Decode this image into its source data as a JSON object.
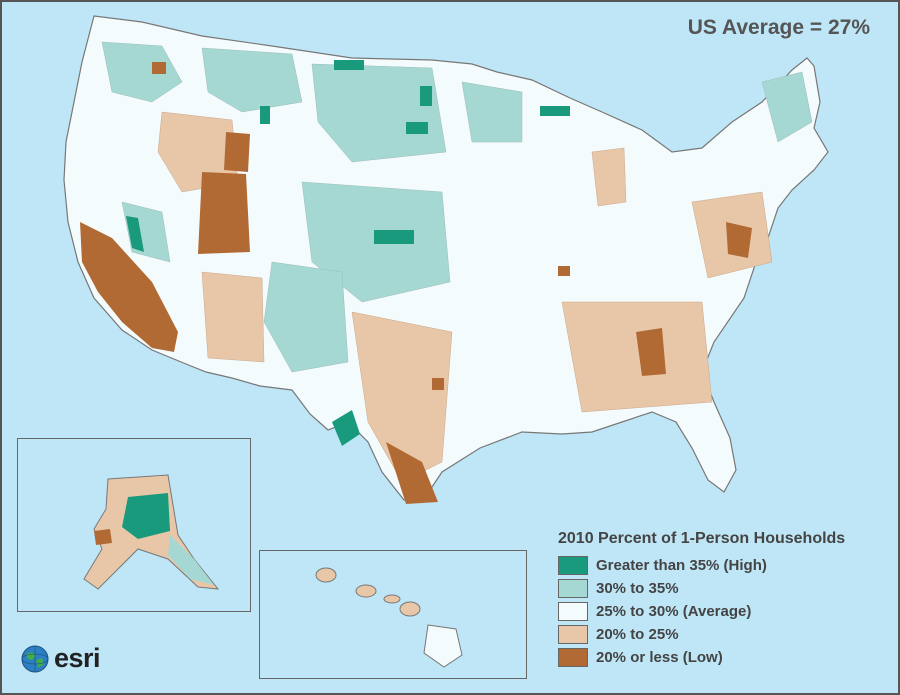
{
  "headline": "US Average = 27%",
  "legend": {
    "title": "2010 Percent of 1-Person Households",
    "items": [
      {
        "label": "Greater than 35% (High)",
        "color": "#1a9a7c"
      },
      {
        "label": "30% to 35%",
        "color": "#a6d8d3"
      },
      {
        "label": "25% to 30% (Average)",
        "color": "#f4fbfd"
      },
      {
        "label": "20% to 25%",
        "color": "#e8c7a8"
      },
      {
        "label": "20% or less (Low)",
        "color": "#b26a34"
      }
    ]
  },
  "colors": {
    "ocean": "#bfe6f7",
    "high": "#1a9a7c",
    "mid_high": "#a6d8d3",
    "average": "#f4fbfd",
    "mid_low": "#e8c7a8",
    "low": "#b26a34"
  },
  "logo": {
    "text": "esri",
    "icon": "globe-icon"
  }
}
